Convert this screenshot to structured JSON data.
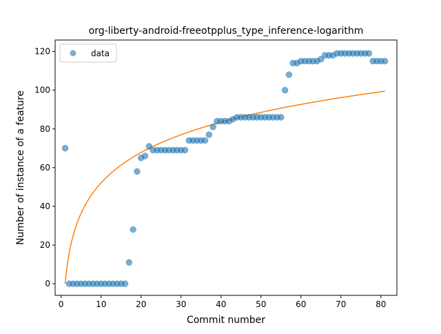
{
  "chart_data": {
    "type": "scatter",
    "title": "org-liberty-android-freeotpplus_type_inference-logarithm",
    "xlabel": "Commit number",
    "ylabel": "Number of instance of a feature",
    "xlim": [
      -1.5,
      84.0
    ],
    "ylim": [
      -6.0,
      125.9
    ],
    "xticks": [
      0,
      10,
      20,
      30,
      40,
      50,
      60,
      70,
      80
    ],
    "yticks": [
      0,
      20,
      40,
      60,
      80,
      100,
      120
    ],
    "grid": false,
    "legend": {
      "placement": "top-left",
      "entries": [
        "data"
      ]
    },
    "colors": {
      "data": "#1f77b4",
      "fit": "#ff7f0e"
    },
    "series": [
      {
        "name": "data",
        "kind": "scatter",
        "x": [
          1,
          2,
          3,
          4,
          5,
          6,
          7,
          8,
          9,
          10,
          11,
          12,
          13,
          14,
          15,
          16,
          17,
          18,
          19,
          20,
          21,
          22,
          23,
          24,
          25,
          26,
          27,
          28,
          29,
          30,
          31,
          32,
          33,
          34,
          35,
          36,
          37,
          38,
          39,
          40,
          41,
          42,
          43,
          44,
          45,
          46,
          47,
          48,
          49,
          50,
          51,
          52,
          53,
          54,
          55,
          56,
          57,
          58,
          59,
          60,
          61,
          62,
          63,
          64,
          65,
          66,
          67,
          68,
          69,
          70,
          71,
          72,
          73,
          74,
          75,
          76,
          77,
          78,
          79,
          80,
          81
        ],
        "y": [
          70,
          0,
          0,
          0,
          0,
          0,
          0,
          0,
          0,
          0,
          0,
          0,
          0,
          0,
          0,
          0,
          11,
          28,
          58,
          65,
          66,
          71,
          69,
          69,
          69,
          69,
          69,
          69,
          69,
          69,
          69,
          74,
          74,
          74,
          74,
          74,
          77,
          81,
          84,
          84,
          84,
          84,
          85,
          86,
          86,
          86,
          86,
          86,
          86,
          86,
          86,
          86,
          86,
          86,
          86,
          100,
          108,
          114,
          114,
          115,
          115,
          115,
          115,
          115,
          116,
          118,
          118,
          118,
          119,
          119,
          119,
          119,
          119,
          119,
          119,
          119,
          119,
          115,
          115,
          115,
          115
        ]
      },
      {
        "name": "fit",
        "kind": "line",
        "function": "y = a + b*ln(x)",
        "a": 0.0,
        "b": 22.63,
        "x_range": [
          1,
          81
        ]
      }
    ]
  }
}
